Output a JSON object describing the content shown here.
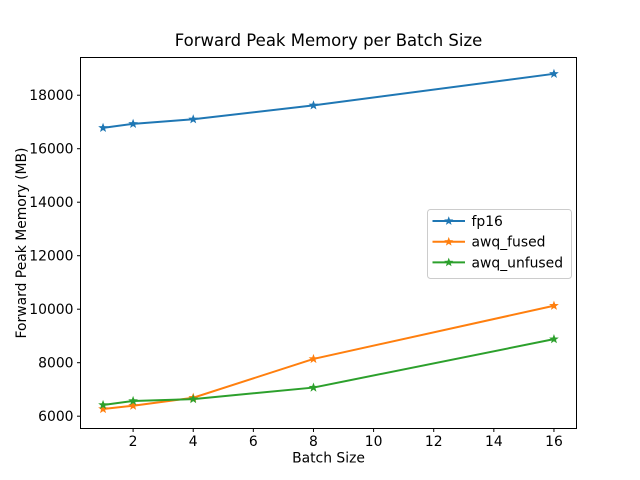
{
  "chart_data": {
    "type": "line",
    "title": "Forward Peak Memory per Batch Size",
    "xlabel": "Batch Size",
    "ylabel": "Forward Peak Memory (MB)",
    "x": [
      1,
      2,
      4,
      8,
      16
    ],
    "series": [
      {
        "name": "fp16",
        "color": "#1f77b4",
        "values": [
          16780,
          16930,
          17100,
          17620,
          18800
        ]
      },
      {
        "name": "awq_fused",
        "color": "#ff7f0e",
        "values": [
          6270,
          6390,
          6690,
          8140,
          10130
        ]
      },
      {
        "name": "awq_unfused",
        "color": "#2ca02c",
        "values": [
          6420,
          6570,
          6640,
          7070,
          8880
        ]
      }
    ],
    "x_ticks": [
      2,
      4,
      6,
      8,
      10,
      12,
      14,
      16
    ],
    "y_ticks": [
      6000,
      8000,
      10000,
      12000,
      14000,
      16000,
      18000
    ],
    "xlim": [
      0.25,
      16.75
    ],
    "ylim": [
      5540,
      19410
    ],
    "grid": false,
    "marker": "star",
    "legend": {
      "position": "center right",
      "entries": [
        "fp16",
        "awq_fused",
        "awq_unfused"
      ]
    }
  }
}
